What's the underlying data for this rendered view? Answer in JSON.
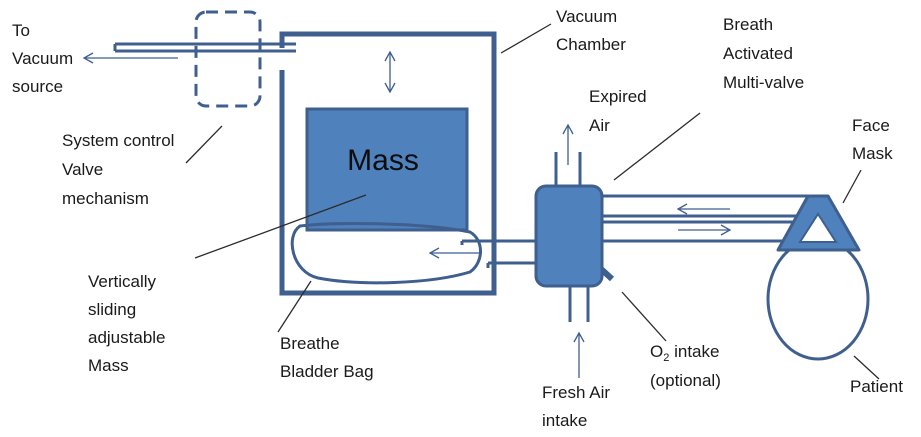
{
  "colors": {
    "stroke": "#3f5f8f",
    "fill": "#4f81bd",
    "leader": "#2b2b2b",
    "text": "#1a1a1a",
    "background": "#ffffff"
  },
  "labels": {
    "vacuum_source": [
      "To",
      "Vacuum",
      "source"
    ],
    "vacuum_chamber": [
      "Vacuum",
      "Chamber"
    ],
    "breath_valve": [
      "Breath",
      "Activated",
      "Multi-valve"
    ],
    "expired_air": [
      "Expired",
      "Air"
    ],
    "face_mask": [
      "Face",
      "Mask"
    ],
    "system_control": [
      "System control",
      "Valve",
      "mechanism"
    ],
    "mass": "Mass",
    "sliding_mass": [
      "Vertically",
      "sliding",
      "adjustable",
      "Mass"
    ],
    "bladder_bag": [
      "Breathe",
      "Bladder Bag"
    ],
    "o2_intake": {
      "prefix": "O",
      "subscript": "2",
      "suffix": " intake",
      "note": "(optional)"
    },
    "fresh_air": [
      "Fresh Air",
      "intake"
    ],
    "patient": "Patient"
  }
}
